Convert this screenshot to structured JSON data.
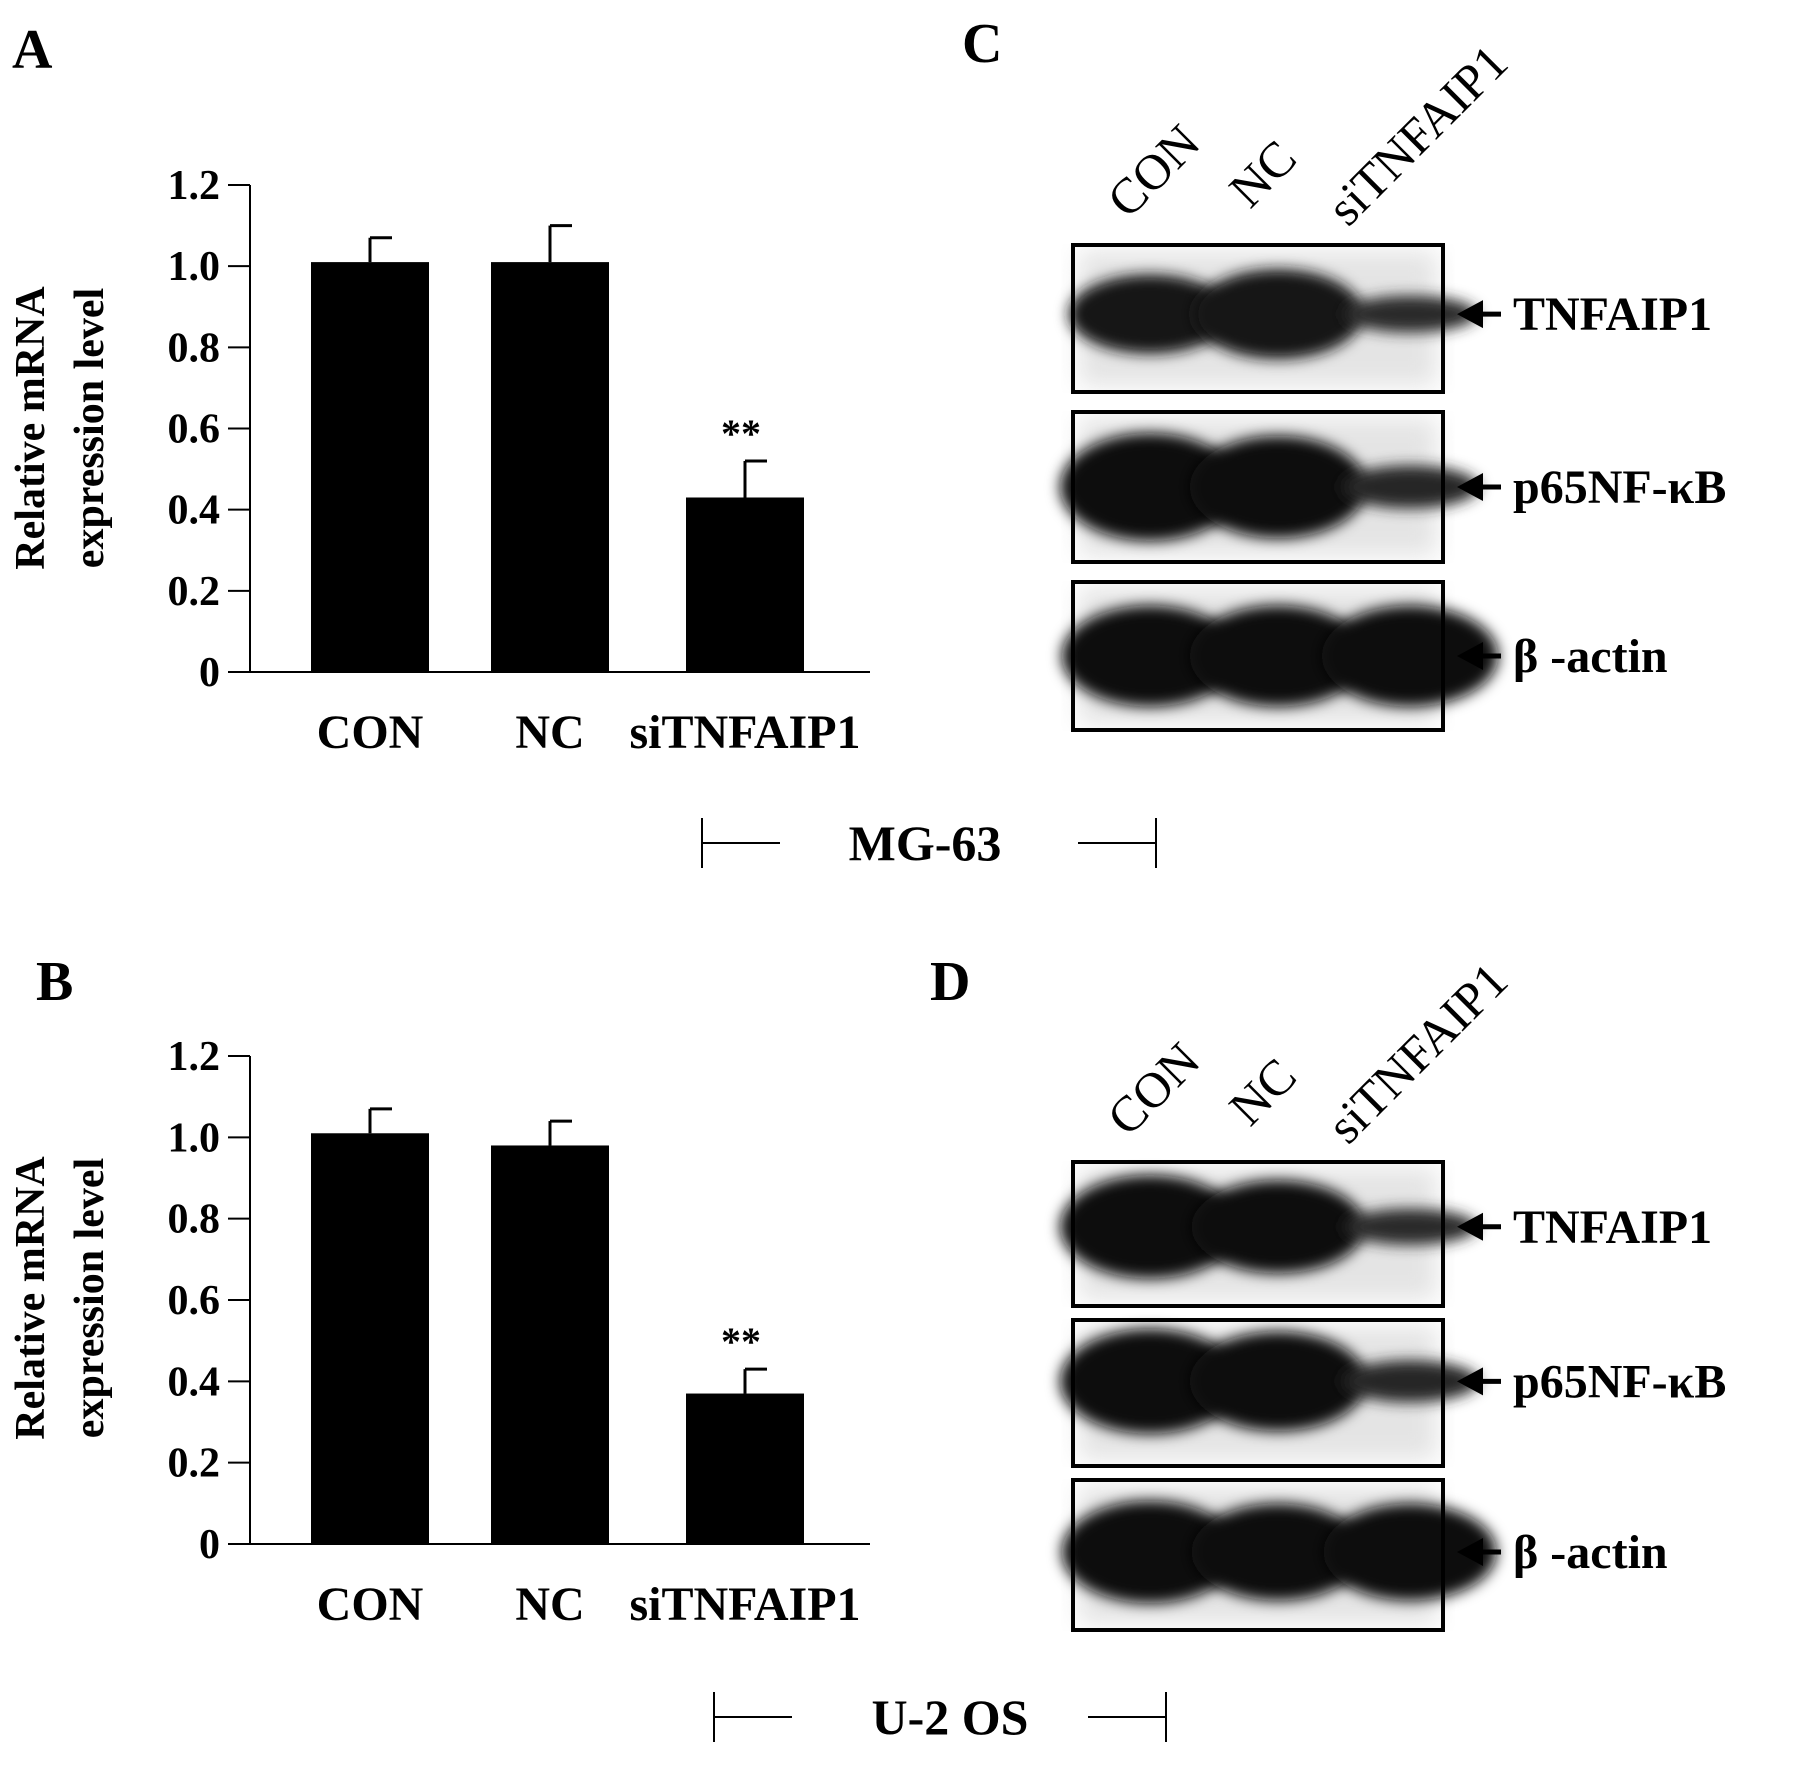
{
  "panels": {
    "A": "A",
    "B": "B",
    "C": "C",
    "D": "D"
  },
  "cell_lines": {
    "top": "MG-63",
    "bottom": "U-2 OS"
  },
  "chart_data": [
    {
      "id": "A",
      "type": "bar",
      "ylabel_line1": "Relative mRNA",
      "ylabel_line2": "expression level",
      "xlabel": "",
      "categories": [
        "CON",
        "NC",
        "siTNFAIP1"
      ],
      "values": [
        1.01,
        1.01,
        0.43
      ],
      "errors": [
        0.06,
        0.09,
        0.09
      ],
      "annotations": [
        "",
        "",
        "**"
      ],
      "ylim": [
        0,
        1.2
      ],
      "yticks": [
        "0",
        "0.2",
        "0.4",
        "0.6",
        "0.8",
        "1.0",
        "1.2"
      ],
      "grid": false,
      "bar_color": "#000000"
    },
    {
      "id": "B",
      "type": "bar",
      "ylabel_line1": "Relative mRNA",
      "ylabel_line2": "expression level",
      "xlabel": "",
      "categories": [
        "CON",
        "NC",
        "siTNFAIP1"
      ],
      "values": [
        1.01,
        0.98,
        0.37
      ],
      "errors": [
        0.06,
        0.06,
        0.06
      ],
      "annotations": [
        "",
        "",
        "**"
      ],
      "ylim": [
        0,
        1.2
      ],
      "yticks": [
        "0",
        "0.2",
        "0.4",
        "0.6",
        "0.8",
        "1.0",
        "1.2"
      ],
      "grid": false,
      "bar_color": "#000000"
    }
  ],
  "blots": [
    {
      "id": "C",
      "lanes": [
        "CON",
        "NC",
        "siTNFAIP1"
      ],
      "bands": [
        {
          "label": "TNFAIP1",
          "intensity": [
            0.75,
            0.85,
            0.35
          ]
        },
        {
          "label": "p65NF-κB",
          "intensity": [
            1.0,
            0.95,
            0.4
          ]
        },
        {
          "label": "β -actin",
          "intensity": [
            0.95,
            0.95,
            0.95
          ]
        }
      ]
    },
    {
      "id": "D",
      "lanes": [
        "CON",
        "NC",
        "siTNFAIP1"
      ],
      "bands": [
        {
          "label": "TNFAIP1",
          "intensity": [
            1.0,
            0.9,
            0.35
          ]
        },
        {
          "label": "p65NF-κB",
          "intensity": [
            1.0,
            0.95,
            0.4
          ]
        },
        {
          "label": "β -actin",
          "intensity": [
            0.95,
            0.9,
            0.9
          ]
        }
      ]
    }
  ]
}
